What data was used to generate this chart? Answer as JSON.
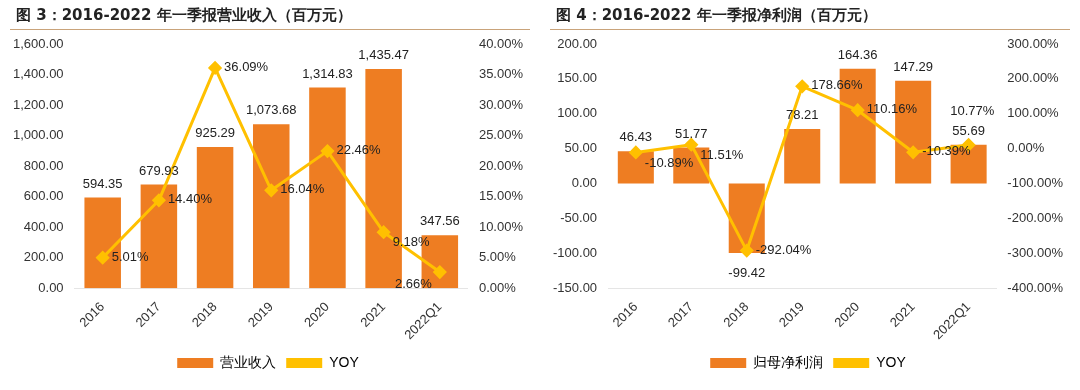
{
  "chart_data": [
    {
      "type": "bar",
      "title": "图 3：2016-2022 年一季报营业收入（百万元）",
      "categories": [
        "2016",
        "2017",
        "2018",
        "2019",
        "2020",
        "2021",
        "2022Q1"
      ],
      "series": [
        {
          "name": "营业收入",
          "color": "#ee7d22",
          "values": [
            594.35,
            679.93,
            925.29,
            1073.68,
            1314.83,
            1435.47,
            347.56
          ],
          "value_labels": [
            "594.35",
            "679.93",
            "925.29",
            "1,073.68",
            "1,314.83",
            "1,435.47",
            "347.56"
          ]
        },
        {
          "name": "YOY",
          "type": "line",
          "axis": "y2",
          "color": "#ffc000",
          "marker": "diamond",
          "values": [
            5.01,
            14.4,
            36.09,
            16.04,
            22.46,
            9.18,
            2.66
          ],
          "value_labels": [
            "5.01%",
            "14.40%",
            "36.09%",
            "16.04%",
            "22.46%",
            "9.18%",
            "2.66%"
          ]
        }
      ],
      "ylim": [
        0,
        1600
      ],
      "yticks": [
        {
          "value": 0,
          "label": "0.00"
        },
        {
          "value": 200,
          "label": "200.00"
        },
        {
          "value": 400,
          "label": "400.00"
        },
        {
          "value": 600,
          "label": "600.00"
        },
        {
          "value": 800,
          "label": "800.00"
        },
        {
          "value": 1000,
          "label": "1,000.00"
        },
        {
          "value": 1200,
          "label": "1,200.00"
        },
        {
          "value": 1400,
          "label": "1,400.00"
        },
        {
          "value": 1600,
          "label": "1,600.00"
        }
      ],
      "y2lim": [
        0,
        40
      ],
      "y2ticks": [
        {
          "value": 0,
          "label": "0.00%"
        },
        {
          "value": 5,
          "label": "5.00%"
        },
        {
          "value": 10,
          "label": "10.00%"
        },
        {
          "value": 15,
          "label": "15.00%"
        },
        {
          "value": 20,
          "label": "20.00%"
        },
        {
          "value": 25,
          "label": "25.00%"
        },
        {
          "value": 30,
          "label": "30.00%"
        },
        {
          "value": 35,
          "label": "35.00%"
        },
        {
          "value": 40,
          "label": "40.00%"
        }
      ],
      "legend": "bottom"
    },
    {
      "type": "bar",
      "title": "图 4：2016-2022 年一季报净利润（百万元）",
      "categories": [
        "2016",
        "2017",
        "2018",
        "2019",
        "2020",
        "2021",
        "2022Q1"
      ],
      "series": [
        {
          "name": "归母净利润",
          "color": "#ee7d22",
          "values": [
            46.43,
            51.77,
            -99.42,
            78.21,
            164.36,
            147.29,
            55.69
          ],
          "value_labels": [
            "46.43",
            "51.77",
            "-99.42",
            "78.21",
            "164.36",
            "147.29",
            "55.69"
          ]
        },
        {
          "name": "YOY",
          "type": "line",
          "axis": "y2",
          "color": "#ffc000",
          "marker": "diamond",
          "values": [
            -10.89,
            11.51,
            -292.04,
            178.66,
            110.16,
            -10.39,
            10.77
          ],
          "value_labels": [
            "-10.89%",
            "11.51%",
            "-292.04%",
            "178.66%",
            "110.16%",
            "-10.39%",
            "10.77%"
          ]
        }
      ],
      "ylim": [
        -150,
        200
      ],
      "yticks": [
        {
          "value": -150,
          "label": "-150.00"
        },
        {
          "value": -100,
          "label": "-100.00"
        },
        {
          "value": -50,
          "label": "-50.00"
        },
        {
          "value": 0,
          "label": "0.00"
        },
        {
          "value": 50,
          "label": "50.00"
        },
        {
          "value": 100,
          "label": "100.00"
        },
        {
          "value": 150,
          "label": "150.00"
        },
        {
          "value": 200,
          "label": "200.00"
        }
      ],
      "y2lim": [
        -400,
        300
      ],
      "y2ticks": [
        {
          "value": -400,
          "label": "-400.00%"
        },
        {
          "value": -300,
          "label": "-300.00%"
        },
        {
          "value": -200,
          "label": "-200.00%"
        },
        {
          "value": -100,
          "label": "-100.00%"
        },
        {
          "value": 0,
          "label": "0.00%"
        },
        {
          "value": 100,
          "label": "100.00%"
        },
        {
          "value": 200,
          "label": "200.00%"
        },
        {
          "value": 300,
          "label": "300.00%"
        }
      ],
      "legend": "bottom"
    }
  ]
}
